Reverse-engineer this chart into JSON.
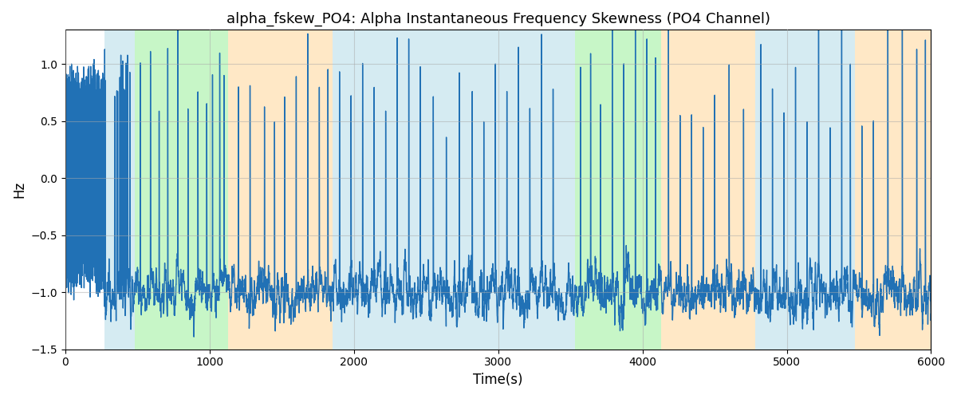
{
  "title": "alpha_fskew_PO4: Alpha Instantaneous Frequency Skewness (PO4 Channel)",
  "xlabel": "Time(s)",
  "ylabel": "Hz",
  "xlim": [
    0,
    6000
  ],
  "ylim": [
    -1.5,
    1.3
  ],
  "yticks": [
    -1.5,
    -1.0,
    -0.5,
    0.0,
    0.5,
    1.0
  ],
  "xticks": [
    0,
    1000,
    2000,
    3000,
    4000,
    5000,
    6000
  ],
  "line_color": "#2171b5",
  "line_width": 1.0,
  "grid_color": "#aaaaaa",
  "grid_alpha": 0.5,
  "background_bands": [
    {
      "xmin": 0,
      "xmax": 270,
      "color": "#ffffff",
      "alpha": 0.0
    },
    {
      "xmin": 270,
      "xmax": 480,
      "color": "#add8e6",
      "alpha": 0.5
    },
    {
      "xmin": 480,
      "xmax": 1130,
      "color": "#90ee90",
      "alpha": 0.5
    },
    {
      "xmin": 1130,
      "xmax": 1850,
      "color": "#ffd9a0",
      "alpha": 0.6
    },
    {
      "xmin": 1850,
      "xmax": 3450,
      "color": "#add8e6",
      "alpha": 0.5
    },
    {
      "xmin": 3450,
      "xmax": 3530,
      "color": "#add8e6",
      "alpha": 0.5
    },
    {
      "xmin": 3530,
      "xmax": 3730,
      "color": "#90ee90",
      "alpha": 0.5
    },
    {
      "xmin": 3730,
      "xmax": 4130,
      "color": "#90ee90",
      "alpha": 0.5
    },
    {
      "xmin": 4130,
      "xmax": 4780,
      "color": "#ffd9a0",
      "alpha": 0.6
    },
    {
      "xmin": 4780,
      "xmax": 5470,
      "color": "#add8e6",
      "alpha": 0.5
    },
    {
      "xmin": 5470,
      "xmax": 6000,
      "color": "#ffd9a0",
      "alpha": 0.6
    }
  ],
  "figsize": [
    12.0,
    5.0
  ],
  "dpi": 100
}
